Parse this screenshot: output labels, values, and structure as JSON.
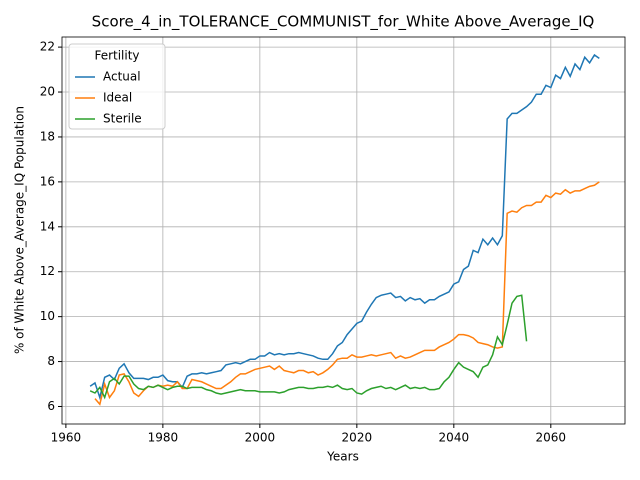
{
  "chart_data": {
    "type": "line",
    "title": "Score_4_in_TOLERANCE_COMMUNIST_for_White Above_Average_IQ",
    "x_label": "Years",
    "y_label": "% of White Above_Average_IQ Population",
    "legend_title": "Fertility",
    "legend_position": "upper left",
    "grid": true,
    "xlim": [
      1959.2,
      2075.3
    ],
    "ylim": [
      5.22,
      22.45
    ],
    "xticks": [
      1960,
      1980,
      2000,
      2020,
      2040,
      2060
    ],
    "yticks": [
      6,
      8,
      10,
      12,
      14,
      16,
      18,
      20,
      22
    ],
    "x": [
      1965,
      1966,
      1967,
      1968,
      1969,
      1970,
      1971,
      1972,
      1973,
      1974,
      1975,
      1976,
      1977,
      1978,
      1979,
      1980,
      1981,
      1982,
      1983,
      1984,
      1985,
      1986,
      1987,
      1988,
      1989,
      1990,
      1991,
      1992,
      1993,
      1994,
      1995,
      1996,
      1997,
      1998,
      1999,
      2000,
      2001,
      2002,
      2003,
      2004,
      2005,
      2006,
      2007,
      2008,
      2009,
      2010,
      2011,
      2012,
      2013,
      2014,
      2015,
      2016,
      2017,
      2018,
      2019,
      2020,
      2021,
      2022,
      2023,
      2024,
      2025,
      2026,
      2027,
      2028,
      2029,
      2030,
      2031,
      2032,
      2033,
      2034,
      2035,
      2036,
      2037,
      2038,
      2039,
      2040,
      2041,
      2042,
      2043,
      2044,
      2045,
      2046,
      2047,
      2048,
      2049,
      2050,
      2051,
      2052,
      2053,
      2054,
      2055,
      2056,
      2057,
      2058,
      2059,
      2060,
      2061,
      2062,
      2063,
      2064,
      2065,
      2066,
      2067,
      2068,
      2069,
      2070
    ],
    "series": [
      {
        "name": "Actual",
        "color": "#1f77b4",
        "values": [
          6.9,
          7.05,
          6.4,
          7.3,
          7.4,
          7.2,
          7.7,
          7.9,
          7.5,
          7.25,
          7.25,
          7.25,
          7.2,
          7.3,
          7.3,
          7.4,
          7.15,
          7.1,
          7.1,
          6.85,
          7.35,
          7.45,
          7.45,
          7.5,
          7.45,
          7.5,
          7.55,
          7.6,
          7.85,
          7.9,
          7.95,
          7.9,
          8.0,
          8.1,
          8.1,
          8.25,
          8.25,
          8.4,
          8.3,
          8.35,
          8.3,
          8.35,
          8.35,
          8.4,
          8.35,
          8.3,
          8.25,
          8.15,
          8.1,
          8.1,
          8.35,
          8.7,
          8.85,
          9.2,
          9.45,
          9.7,
          9.8,
          10.2,
          10.55,
          10.85,
          10.95,
          11.0,
          11.05,
          10.85,
          10.9,
          10.7,
          10.85,
          10.75,
          10.8,
          10.6,
          10.75,
          10.75,
          10.9,
          11.0,
          11.1,
          11.45,
          11.55,
          12.1,
          12.25,
          12.95,
          12.85,
          13.45,
          13.2,
          13.5,
          13.2,
          13.6,
          18.8,
          19.05,
          19.05,
          19.2,
          19.35,
          19.55,
          19.9,
          19.9,
          20.3,
          20.2,
          20.75,
          20.6,
          21.1,
          20.7,
          21.25,
          21.0,
          21.55,
          21.3,
          21.65,
          21.5
        ]
      },
      {
        "name": "Ideal",
        "color": "#ff7f0e",
        "values": [
          null,
          6.35,
          6.1,
          7.0,
          6.4,
          6.7,
          7.4,
          7.45,
          7.1,
          6.6,
          6.45,
          6.7,
          6.9,
          6.85,
          6.95,
          6.9,
          6.95,
          6.9,
          7.1,
          6.8,
          6.8,
          7.2,
          7.15,
          7.1,
          7.0,
          6.9,
          6.8,
          6.8,
          6.95,
          7.1,
          7.3,
          7.45,
          7.45,
          7.55,
          7.65,
          7.7,
          7.75,
          7.8,
          7.65,
          7.8,
          7.6,
          7.55,
          7.5,
          7.6,
          7.6,
          7.5,
          7.55,
          7.4,
          7.5,
          7.65,
          7.85,
          8.1,
          8.15,
          8.15,
          8.3,
          8.2,
          8.2,
          8.25,
          8.3,
          8.25,
          8.3,
          8.35,
          8.4,
          8.15,
          8.25,
          8.15,
          8.2,
          8.3,
          8.4,
          8.5,
          8.5,
          8.5,
          8.65,
          8.75,
          8.85,
          9.0,
          9.2,
          9.2,
          9.15,
          9.05,
          8.85,
          8.8,
          8.75,
          8.65,
          8.6,
          8.65,
          14.6,
          14.7,
          14.65,
          14.85,
          14.95,
          14.95,
          15.1,
          15.1,
          15.4,
          15.3,
          15.5,
          15.45,
          15.65,
          15.5,
          15.6,
          15.6,
          15.7,
          15.8,
          15.85,
          16.0
        ]
      },
      {
        "name": "Sterile",
        "color": "#2ca02c",
        "values": [
          6.7,
          6.6,
          6.85,
          6.4,
          7.1,
          7.25,
          7.0,
          7.35,
          7.35,
          7.0,
          6.8,
          6.75,
          6.9,
          6.85,
          6.95,
          6.85,
          6.75,
          6.85,
          6.9,
          6.9,
          6.8,
          6.85,
          6.85,
          6.85,
          6.75,
          6.7,
          6.6,
          6.55,
          6.6,
          6.65,
          6.7,
          6.75,
          6.7,
          6.7,
          6.7,
          6.65,
          6.65,
          6.65,
          6.65,
          6.6,
          6.65,
          6.75,
          6.8,
          6.85,
          6.85,
          6.8,
          6.8,
          6.85,
          6.85,
          6.9,
          6.85,
          6.95,
          6.8,
          6.75,
          6.8,
          6.6,
          6.55,
          6.7,
          6.8,
          6.85,
          6.9,
          6.8,
          6.85,
          6.75,
          6.85,
          6.95,
          6.8,
          6.85,
          6.8,
          6.85,
          6.75,
          6.75,
          6.8,
          7.1,
          7.3,
          7.65,
          7.95,
          7.75,
          7.65,
          7.55,
          7.3,
          7.75,
          7.85,
          8.3,
          9.1,
          8.75,
          9.65,
          10.6,
          10.9,
          10.95,
          8.9,
          null,
          null,
          null,
          null,
          null,
          null,
          null,
          null,
          null,
          null,
          null,
          null,
          null,
          null,
          null
        ]
      }
    ]
  }
}
